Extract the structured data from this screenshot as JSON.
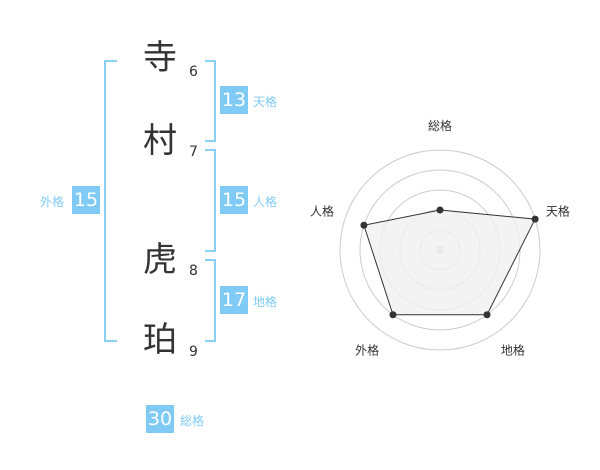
{
  "name": {
    "chars": [
      {
        "char": "寺",
        "strokes": "6"
      },
      {
        "char": "村",
        "strokes": "7"
      },
      {
        "char": "虎",
        "strokes": "8"
      },
      {
        "char": "珀",
        "strokes": "9"
      }
    ]
  },
  "grids": {
    "tenkaku": {
      "label": "天格",
      "value": "13"
    },
    "jinkaku": {
      "label": "人格",
      "value": "15"
    },
    "chikaku": {
      "label": "地格",
      "value": "17"
    },
    "gaikaku": {
      "label": "外格",
      "value": "15"
    },
    "soukaku": {
      "label": "総格",
      "value": "30"
    }
  },
  "chart_data": {
    "type": "radar",
    "axes": [
      "総格",
      "天格",
      "地格",
      "外格",
      "人格"
    ],
    "values": [
      2,
      5,
      4,
      4,
      4
    ],
    "range": [
      0,
      5
    ],
    "rings": 5,
    "colors": {
      "line": "#333333",
      "fill": "#f0f0f0",
      "grid": "#cccccc"
    }
  },
  "colors": {
    "accent": "#80cbf5",
    "text": "#333333"
  }
}
